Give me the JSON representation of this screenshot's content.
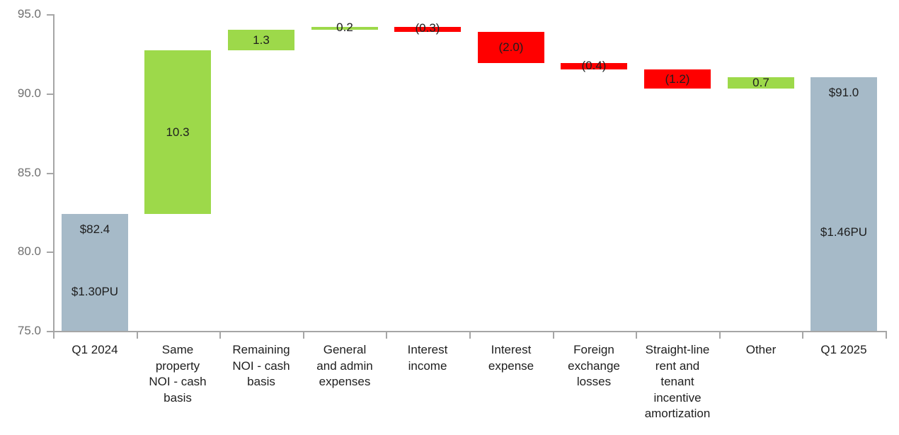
{
  "chart_data": {
    "type": "waterfall",
    "title": "",
    "xlabel": "",
    "ylabel": "",
    "ylim": [
      75.0,
      95.0
    ],
    "yticks": [
      75.0,
      80.0,
      85.0,
      90.0,
      95.0
    ],
    "ytick_labels": [
      "75.0",
      "80.0",
      "85.0",
      "90.0",
      "95.0"
    ],
    "grid": false,
    "legend": null,
    "categories": [
      "Q1 2024",
      "Same property NOI - cash basis",
      "Remaining NOI - cash basis",
      "General and admin expenses",
      "Interest income",
      "Interest expense",
      "Foreign exchange losses",
      "Straight-line rent and tenant incentive amortization",
      "Other",
      "Q1 2025"
    ],
    "category_display_lines": [
      "Q1 2024",
      "Same\nproperty\nNOI - cash\nbasis",
      "Remaining\nNOI - cash\nbasis",
      "General\nand admin\nexpenses",
      "Interest\nincome",
      "Interest\nexpense",
      "Foreign\nexchange\nlosses",
      "Straight-line\nrent and\ntenant\nincentive\namortization",
      "Other",
      "Q1 2025"
    ],
    "bars": [
      {
        "category": "Q1 2024",
        "kind": "total",
        "start": 75.0,
        "end": 82.4,
        "value": 82.4,
        "label": "$82.4",
        "sublabel": "$1.30PU",
        "color": "#a6bac8"
      },
      {
        "category": "Same property NOI - cash basis",
        "kind": "increase",
        "start": 82.4,
        "end": 92.7,
        "value": 10.3,
        "label": "10.3",
        "color": "#9dd94a"
      },
      {
        "category": "Remaining NOI - cash basis",
        "kind": "increase",
        "start": 92.7,
        "end": 94.0,
        "value": 1.3,
        "label": "1.3",
        "color": "#9dd94a"
      },
      {
        "category": "General and admin expenses",
        "kind": "increase",
        "start": 94.0,
        "end": 94.2,
        "value": 0.2,
        "label": "0.2",
        "color": "#9dd94a"
      },
      {
        "category": "Interest income",
        "kind": "decrease",
        "start": 94.2,
        "end": 93.9,
        "value": -0.3,
        "label": "(0.3)",
        "color": "#ff0000"
      },
      {
        "category": "Interest expense",
        "kind": "decrease",
        "start": 93.9,
        "end": 91.9,
        "value": -2.0,
        "label": "(2.0)",
        "color": "#ff0000"
      },
      {
        "category": "Foreign exchange losses",
        "kind": "decrease",
        "start": 91.9,
        "end": 91.5,
        "value": -0.4,
        "label": "(0.4)",
        "color": "#ff0000"
      },
      {
        "category": "Straight-line rent and tenant incentive amortization",
        "kind": "decrease",
        "start": 91.5,
        "end": 90.3,
        "value": -1.2,
        "label": "(1.2)",
        "color": "#ff0000"
      },
      {
        "category": "Other",
        "kind": "increase",
        "start": 90.3,
        "end": 91.0,
        "value": 0.7,
        "label": "0.7",
        "color": "#9dd94a"
      },
      {
        "category": "Q1 2025",
        "kind": "total",
        "start": 75.0,
        "end": 91.0,
        "value": 91.0,
        "label": "$91.0",
        "sublabel": "$1.46PU",
        "color": "#a6bac8"
      }
    ],
    "values": [
      82.4,
      10.3,
      1.3,
      0.2,
      -0.3,
      -2.0,
      -0.4,
      -1.2,
      0.7,
      91.0
    ],
    "colors": {
      "total": "#a6bac8",
      "increase": "#9dd94a",
      "decrease": "#ff0000",
      "axis": "#a6a6a6",
      "tick_text": "#6f6f6f",
      "label_text": "#1e1e1e"
    }
  }
}
